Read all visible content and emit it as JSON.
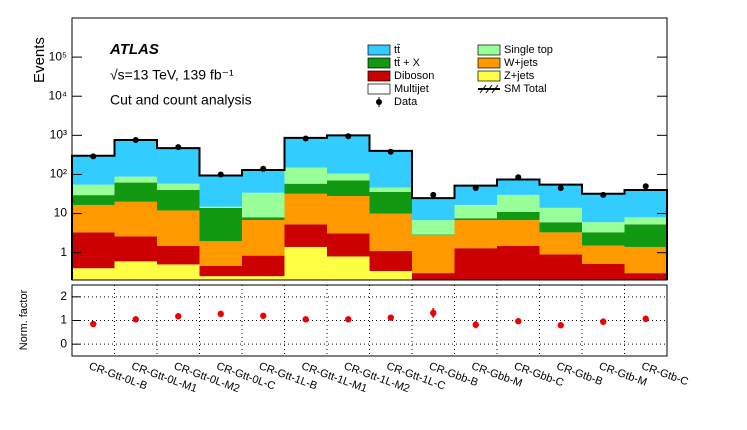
{
  "chart_data": {
    "type": "stacked_histogram_log",
    "ylabel": "Events",
    "annotations": [
      "ATLAS",
      "√s=13 TeV, 139 fb⁻¹",
      "Cut and count analysis"
    ],
    "categories": [
      "CR-Gtt-0L-B",
      "CR-Gtt-0L-M1",
      "CR-Gtt-0L-M2",
      "CR-Gtt-0L-C",
      "CR-Gtt-1L-B",
      "CR-Gtt-1L-M1",
      "CR-Gtt-1L-M2",
      "CR-Gtt-1L-C",
      "CR-Gbb-B",
      "CR-Gbb-M",
      "CR-Gbb-C",
      "CR-Gtb-B",
      "CR-Gtb-M",
      "CR-Gtb-C"
    ],
    "log_scale": true,
    "ylim": [
      0.2,
      1000000
    ],
    "yticks": [
      1,
      10,
      {
        "value": 100,
        "label": "10²"
      },
      {
        "value": 1000,
        "label": "10³"
      },
      {
        "value": 10000,
        "label": "10⁴"
      },
      {
        "value": 100000,
        "label": "10⁵"
      }
    ],
    "series": [
      {
        "name": "Z+jets",
        "color": "#ffff44",
        "values": [
          0.4,
          0.6,
          0.5,
          0.25,
          0.25,
          1.4,
          0.8,
          0.34,
          0.05,
          0.05,
          0.05,
          0.05,
          0.05,
          0.05
        ]
      },
      {
        "name": "Diboson",
        "color": "#cc0000",
        "values": [
          2.9,
          2,
          1,
          0.21,
          0.59,
          3.9,
          2.3,
          0.76,
          0.25,
          1.25,
          1.45,
          0.85,
          0.47,
          0.25
        ]
      },
      {
        "name": "W+jets",
        "color": "#ff9900",
        "values": [
          13.3,
          17.4,
          10.5,
          1.5,
          6,
          26.7,
          25,
          8.9,
          2.5,
          5.5,
          5.3,
          2.4,
          1,
          1.1
        ]
      },
      {
        "name": "Multijet",
        "color": "#ffffff",
        "values": [
          0,
          0,
          0,
          0,
          0,
          0,
          0,
          0,
          0,
          0,
          0,
          0,
          0,
          0
        ]
      },
      {
        "name": "tt̄ + X",
        "color": "#119911",
        "values": [
          13,
          42,
          28,
          12,
          1.2,
          26,
          42,
          26,
          0.1,
          0.8,
          4.2,
          2.7,
          1.8,
          3.9
        ]
      },
      {
        "name": "Single top",
        "color": "#99ff99",
        "values": [
          25,
          26,
          18,
          1,
          26,
          92,
          35,
          10,
          3.9,
          9,
          19,
          8,
          2.7,
          2.7
        ]
      },
      {
        "name": "tt̄",
        "color": "#33ccff",
        "values": [
          245,
          672,
          412,
          79,
          96,
          710,
          895,
          354,
          18,
          35,
          44,
          41,
          26,
          32
        ]
      }
    ],
    "data": {
      "name": "Data",
      "color": "#000000",
      "values": [
        290,
        760,
        500,
        100,
        140,
        830,
        950,
        380,
        30,
        45,
        85,
        45,
        30,
        50
      ]
    },
    "sm_total": {
      "name": "SM Total"
    },
    "ratio": {
      "ylabel": "Norm. factor",
      "ylim": [
        -0.5,
        2.5
      ],
      "yticks": [
        0,
        1,
        2
      ],
      "grid": true,
      "color": "#ee0000",
      "values": [
        0.85,
        1.05,
        1.18,
        1.28,
        1.2,
        1.05,
        1.05,
        1.12,
        1.32,
        0.82,
        0.97,
        0.8,
        0.95,
        1.07
      ],
      "errors": [
        0.05,
        0.04,
        0.06,
        0.1,
        0.12,
        0.04,
        0.04,
        0.07,
        0.2,
        0.15,
        0.12,
        0.1,
        0.14,
        0.13
      ]
    }
  }
}
